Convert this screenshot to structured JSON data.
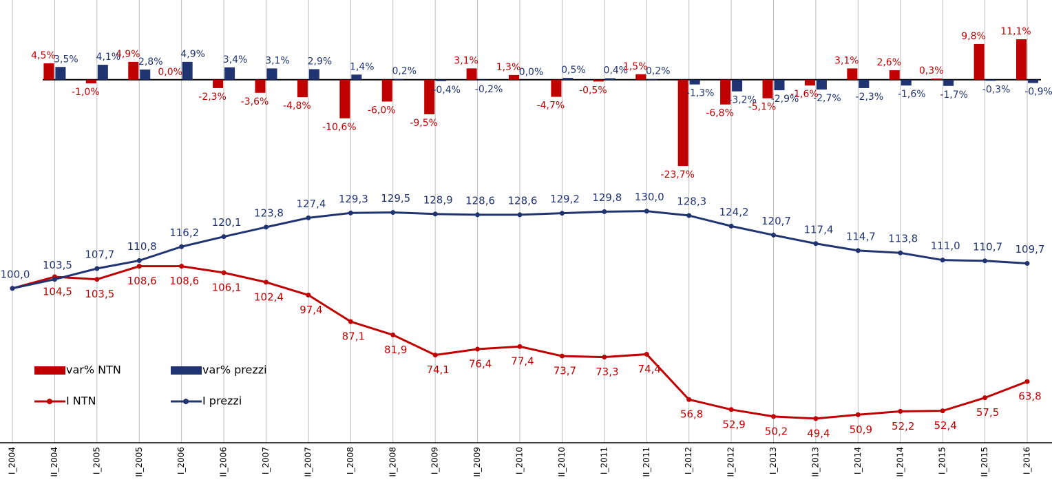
{
  "chart_data": {
    "type": "combo",
    "categories": [
      "I_2004",
      "II_2004",
      "I_2005",
      "II_2005",
      "I_2006",
      "II_2006",
      "I_2007",
      "II_2007",
      "I_2008",
      "II_2008",
      "I_2009",
      "II_2009",
      "I_2010",
      "II_2010",
      "I_2011",
      "II_2011",
      "I_2012",
      "II_2012",
      "I_2013",
      "II_2013",
      "I_2014",
      "II_2014",
      "I_2015",
      "II_2015",
      "I_2016"
    ],
    "series": [
      {
        "name": "var% NTN",
        "type": "bar",
        "axis": "y2",
        "color": "#c00000",
        "values": [
          null,
          4.5,
          -1.0,
          4.9,
          0.0,
          -2.3,
          -3.6,
          -4.8,
          -10.6,
          -6.0,
          -9.5,
          3.1,
          1.3,
          -4.7,
          -0.5,
          1.5,
          -23.7,
          -6.8,
          -5.1,
          -1.6,
          3.1,
          2.6,
          0.3,
          9.8,
          11.1
        ],
        "value_labels": [
          null,
          "4,5%",
          "-1,0%",
          "4,9%",
          "0,0%",
          "-2,3%",
          "-3,6%",
          "-4,8%",
          "-10,6%",
          "-6,0%",
          "-9,5%",
          "3,1%",
          "1,3%",
          "-4,7%",
          "-0,5%",
          "1,5%",
          "-23,7%",
          "-6,8%",
          "-5,1%",
          "-1,6%",
          "3,1%",
          "2,6%",
          "0,3%",
          "9,8%",
          "11,1%"
        ]
      },
      {
        "name": "var% prezzi",
        "type": "bar",
        "axis": "y2",
        "color": "#1f3470",
        "values": [
          null,
          3.5,
          4.1,
          2.8,
          4.9,
          3.4,
          3.1,
          2.9,
          1.4,
          0.2,
          -0.4,
          -0.2,
          0.0,
          0.5,
          0.4,
          0.2,
          -1.3,
          -3.2,
          -2.9,
          -2.7,
          -2.3,
          -1.6,
          -1.7,
          -0.3,
          -0.9
        ],
        "value_labels": [
          null,
          "3,5%",
          "4,1%",
          "2,8%",
          "4,9%",
          "3,4%",
          "3,1%",
          "2,9%",
          "1,4%",
          "0,2%",
          "-0,4%",
          "-0,2%",
          "0,0%",
          "0,5%",
          "0,4%",
          "0,2%",
          "-1,3%",
          "-3,2%",
          "-2,9%",
          "-2,7%",
          "-2,3%",
          "-1,6%",
          "-1,7%",
          "-0,3%",
          "-0,9%"
        ]
      },
      {
        "name": "I NTN",
        "type": "line",
        "color": "#c00000",
        "values": [
          100.0,
          104.5,
          103.5,
          108.6,
          108.6,
          106.1,
          102.4,
          97.4,
          87.1,
          81.9,
          74.1,
          76.4,
          77.4,
          73.7,
          73.3,
          74.4,
          56.8,
          52.9,
          50.2,
          49.4,
          50.9,
          52.2,
          52.4,
          57.5,
          63.8
        ],
        "value_labels": [
          null,
          "104,5",
          "103,5",
          "108,6",
          "108,6",
          "106,1",
          "102,4",
          "97,4",
          "87,1",
          "81,9",
          "74,1",
          "76,4",
          "77,4",
          "73,7",
          "73,3",
          "74,4",
          "56,8",
          "52,9",
          "50,2",
          "49,4",
          "50,9",
          "52,2",
          "52,4",
          "57,5",
          "63,8"
        ]
      },
      {
        "name": "I prezzi",
        "type": "line",
        "color": "#1f3470",
        "values": [
          100.0,
          103.5,
          107.7,
          110.8,
          116.2,
          120.1,
          123.8,
          127.4,
          129.3,
          129.5,
          128.9,
          128.6,
          128.6,
          129.2,
          129.8,
          130.0,
          128.3,
          124.2,
          120.7,
          117.4,
          114.7,
          113.8,
          111.0,
          110.7,
          109.7
        ],
        "value_labels": [
          "100,0",
          "103,5",
          "107,7",
          "110,8",
          "116,2",
          "120,1",
          "123,8",
          "127,4",
          "129,3",
          "129,5",
          "128,9",
          "128,6",
          "128,6",
          "129,2",
          "129,8",
          "130,0",
          "128,3",
          "124,2",
          "120,7",
          "117,4",
          "114,7",
          "113,8",
          "111,0",
          "110,7",
          "109,7"
        ]
      }
    ],
    "ylim": [
      40,
      135
    ],
    "y2lim": [
      -25,
      13
    ],
    "grid": true
  }
}
